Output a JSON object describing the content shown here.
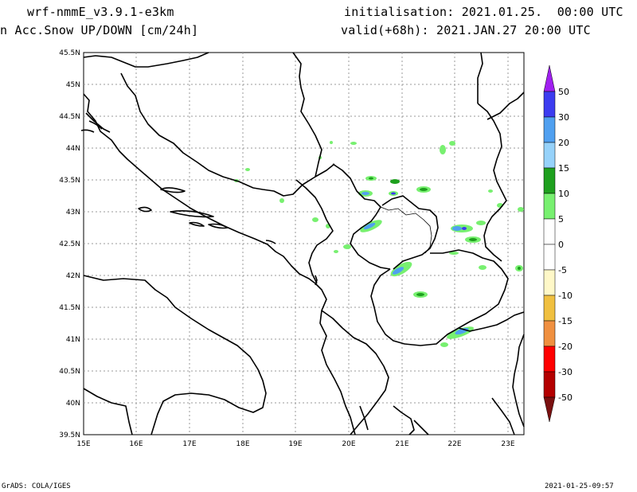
{
  "header": {
    "model": "wrf-nmmE_v3.9.1-e3km",
    "field": "n Acc.Snow UP/DOWN [cm/24h]",
    "init": "initialisation: 2021.01.25.  00:00 UTC",
    "valid": "valid(+68h): 2021.JAN.27 20:00 UTC"
  },
  "footer": {
    "left": "GrADS: COLA/IGES",
    "right": "2021-01-25-09:57"
  },
  "map": {
    "lat_labels": [
      "45.5N",
      "45N",
      "44.5N",
      "44N",
      "43.5N",
      "43N",
      "42.5N",
      "42N",
      "41.5N",
      "41N",
      "40.5N",
      "40N",
      "39.5N"
    ],
    "lon_labels": [
      "15E",
      "16E",
      "17E",
      "18E",
      "19E",
      "20E",
      "21E",
      "22E",
      "23E"
    ]
  },
  "legend": {
    "labels": [
      "50",
      "30",
      "20",
      "15",
      "10",
      "5",
      "0",
      "-5",
      "-10",
      "-15",
      "-20",
      "-30",
      "-50"
    ],
    "colors": {
      "top_arrow": "#a020f0",
      "c_30_50": "#3c3cf0",
      "c_20_30": "#50a0f0",
      "c_15_20": "#96d2fa",
      "c_10_15": "#1ea01e",
      "c_5_10": "#78f070",
      "c_0_5": "#ffffff",
      "c_m5_0": "#ffffff",
      "c_m10_m5": "#fff8c8",
      "c_m15_m10": "#f0c040",
      "c_m20_m15": "#f09040",
      "c_m30_m20": "#ff0000",
      "c_m50_m30": "#b40000",
      "bottom_arrow": "#7a1010"
    }
  }
}
